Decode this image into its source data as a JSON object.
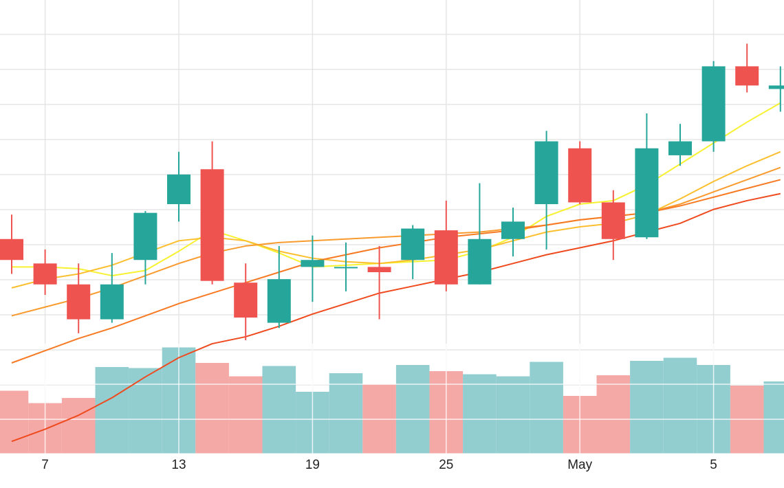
{
  "chart_data": {
    "type": "candlestick",
    "x_tick_labels": [
      "7",
      "13",
      "19",
      "25",
      "May",
      "5"
    ],
    "x_tick_index": [
      1,
      5,
      9,
      13,
      17,
      21
    ],
    "grid": true,
    "price_ylim": [
      4.75,
      17.75
    ],
    "volume_ylim": [
      0,
      100
    ],
    "colors": {
      "up": "#26a69a",
      "down": "#ef5350",
      "up_volume": "#92cdcf",
      "down_volume": "#f5a9a6",
      "grid": "#e5e5e5",
      "ma_lines": [
        "#f7f130",
        "#fbbf2e",
        "#f99a2d",
        "#f77a23",
        "#ef4a1e"
      ]
    },
    "candles": [
      {
        "open": 10.9,
        "high": 11.6,
        "low": 9.9,
        "close": 10.3,
        "volume": 61
      },
      {
        "open": 10.2,
        "high": 10.6,
        "low": 9.3,
        "close": 9.6,
        "volume": 49
      },
      {
        "open": 9.6,
        "high": 10.2,
        "low": 8.2,
        "close": 8.6,
        "volume": 54
      },
      {
        "open": 8.6,
        "high": 10.5,
        "low": 8.5,
        "close": 9.6,
        "volume": 84
      },
      {
        "open": 10.3,
        "high": 11.7,
        "low": 9.6,
        "close": 11.65,
        "volume": 83
      },
      {
        "open": 11.9,
        "high": 13.4,
        "low": 11.4,
        "close": 12.75,
        "volume": 103
      },
      {
        "open": 12.9,
        "high": 13.7,
        "low": 9.6,
        "close": 9.7,
        "volume": 88
      },
      {
        "open": 9.65,
        "high": 10.2,
        "low": 8.0,
        "close": 8.65,
        "volume": 75
      },
      {
        "open": 8.5,
        "high": 10.7,
        "low": 8.35,
        "close": 9.75,
        "volume": 85
      },
      {
        "open": 10.1,
        "high": 11.0,
        "low": 9.1,
        "close": 10.3,
        "volume": 60
      },
      {
        "open": 10.1,
        "high": 10.8,
        "low": 9.4,
        "close": 10.1,
        "volume": 78
      },
      {
        "open": 10.1,
        "high": 10.7,
        "low": 8.6,
        "close": 9.95,
        "volume": 67
      },
      {
        "open": 10.3,
        "high": 11.3,
        "low": 9.75,
        "close": 11.2,
        "volume": 86
      },
      {
        "open": 11.15,
        "high": 12.0,
        "low": 9.4,
        "close": 9.6,
        "volume": 80
      },
      {
        "open": 9.6,
        "high": 12.5,
        "low": 9.6,
        "close": 10.9,
        "volume": 77
      },
      {
        "open": 10.9,
        "high": 11.8,
        "low": 10.4,
        "close": 11.4,
        "volume": 75
      },
      {
        "open": 11.9,
        "high": 14.0,
        "low": 10.6,
        "close": 13.7,
        "volume": 89
      },
      {
        "open": 13.5,
        "high": 13.7,
        "low": 11.9,
        "close": 11.95,
        "volume": 56
      },
      {
        "open": 11.95,
        "high": 12.3,
        "low": 10.3,
        "close": 10.9,
        "volume": 76
      },
      {
        "open": 10.95,
        "high": 14.5,
        "low": 10.9,
        "close": 13.5,
        "volume": 90
      },
      {
        "open": 13.3,
        "high": 14.2,
        "low": 13.0,
        "close": 13.7,
        "volume": 93
      },
      {
        "open": 13.7,
        "high": 16.0,
        "low": 13.4,
        "close": 15.85,
        "volume": 86
      },
      {
        "open": 15.85,
        "high": 16.5,
        "low": 15.1,
        "close": 15.3,
        "volume": 66
      },
      {
        "open": 15.2,
        "high": 15.85,
        "low": 14.55,
        "close": 15.3,
        "volume": 70
      }
    ],
    "ma_series": [
      {
        "values": [
          10.1,
          10.1,
          10.05,
          9.85,
          10.0,
          10.55,
          11.15,
          10.85,
          10.5,
          10.1,
          10.15,
          10.2,
          10.25,
          10.3,
          10.55,
          10.95,
          11.55,
          11.9,
          12.0,
          12.45,
          13.05,
          13.65,
          14.25,
          14.8
        ]
      },
      {
        "values": [
          9.5,
          9.75,
          9.9,
          10.15,
          10.5,
          10.85,
          10.95,
          10.85,
          10.55,
          10.35,
          10.25,
          10.2,
          10.3,
          10.45,
          10.6,
          10.85,
          11.1,
          11.25,
          11.35,
          11.6,
          12.05,
          12.55,
          13.0,
          13.4
        ]
      },
      {
        "values": [
          8.7,
          8.95,
          9.2,
          9.5,
          9.85,
          10.2,
          10.5,
          10.7,
          10.8,
          10.85,
          10.9,
          10.95,
          11.0,
          11.05,
          11.1,
          11.2,
          11.3,
          11.45,
          11.55,
          11.65,
          11.9,
          12.25,
          12.6,
          12.95
        ]
      },
      {
        "values": [
          7.35,
          7.7,
          8.05,
          8.35,
          8.7,
          9.05,
          9.35,
          9.65,
          9.95,
          10.25,
          10.45,
          10.65,
          10.8,
          10.95,
          11.05,
          11.15,
          11.3,
          11.45,
          11.55,
          11.65,
          11.85,
          12.1,
          12.35,
          12.6
        ]
      },
      {
        "values": [
          5.1,
          5.45,
          5.85,
          6.35,
          6.95,
          7.5,
          7.9,
          8.1,
          8.4,
          8.75,
          9.05,
          9.35,
          9.55,
          9.75,
          9.95,
          10.2,
          10.45,
          10.65,
          10.85,
          11.1,
          11.35,
          11.75,
          12.0,
          12.2
        ]
      }
    ]
  }
}
